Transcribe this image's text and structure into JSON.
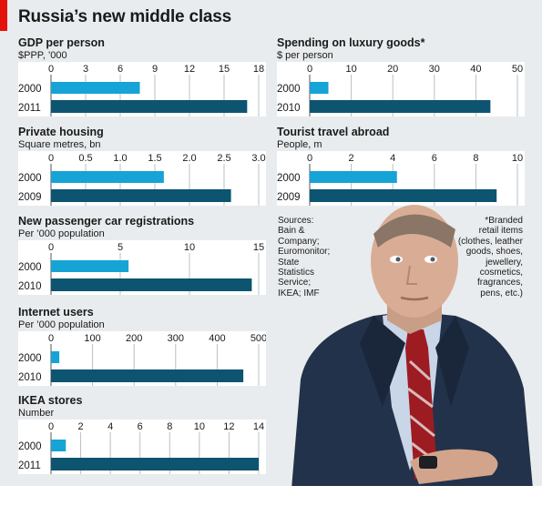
{
  "title": "Russia’s new middle class",
  "sources": [
    "Sources:",
    "Bain &",
    "Company;",
    "Euromonitor;",
    "State",
    "Statistics",
    "Service;",
    "IKEA; IMF"
  ],
  "footnote": [
    "*Branded",
    "retail items",
    "(clothes, leather",
    "goods, shoes,",
    "jewellery,",
    "cosmetics,",
    "fragrances,",
    "pens, etc.)"
  ],
  "colors": {
    "accent_red": "#e3120b",
    "bar_light": "#16a3d6",
    "bar_dark": "#0d5470",
    "background": "#e9ecee"
  },
  "chart_data": [
    {
      "type": "bar",
      "title": "GDP per person",
      "ylabel": "$PPP, ’000",
      "ticks": [
        0,
        3,
        6,
        9,
        12,
        15,
        18
      ],
      "tick_labels": [
        "0",
        "3",
        "6",
        "9",
        "12",
        "15",
        "18"
      ],
      "xlim": [
        0,
        18
      ],
      "categories": [
        "2000",
        "2011"
      ],
      "values": [
        7.7,
        17.0
      ]
    },
    {
      "type": "bar",
      "title": "Spending on luxury goods*",
      "ylabel": "$ per person",
      "ticks": [
        0,
        10,
        20,
        30,
        40,
        50
      ],
      "tick_labels": [
        "0",
        "10",
        "20",
        "30",
        "40",
        "50"
      ],
      "xlim": [
        0,
        50
      ],
      "categories": [
        "2000",
        "2010"
      ],
      "values": [
        4.5,
        43.5
      ]
    },
    {
      "type": "bar",
      "title": "Private housing",
      "ylabel": "Square metres, bn",
      "ticks": [
        0,
        0.5,
        1.0,
        1.5,
        2.0,
        2.5,
        3.0
      ],
      "tick_labels": [
        "0",
        "0.5",
        "1.0",
        "1.5",
        "2.0",
        "2.5",
        "3.0"
      ],
      "xlim": [
        0,
        3
      ],
      "categories": [
        "2000",
        "2009"
      ],
      "values": [
        1.63,
        2.6
      ]
    },
    {
      "type": "bar",
      "title": "Tourist travel abroad",
      "ylabel": "People, m",
      "ticks": [
        0,
        2,
        4,
        6,
        8,
        10
      ],
      "tick_labels": [
        "0",
        "2",
        "4",
        "6",
        "8",
        "10"
      ],
      "xlim": [
        0,
        10
      ],
      "categories": [
        "2000",
        "2009"
      ],
      "values": [
        4.2,
        9.0
      ]
    },
    {
      "type": "bar",
      "title": "New passenger car registrations",
      "ylabel": "Per ’000 population",
      "ticks": [
        0,
        5,
        10,
        15
      ],
      "tick_labels": [
        "0",
        "5",
        "10",
        "15"
      ],
      "xlim": [
        0,
        15
      ],
      "categories": [
        "2000",
        "2010"
      ],
      "values": [
        5.6,
        14.5
      ]
    },
    {
      "type": "bar",
      "title": "Internet users",
      "ylabel": "Per ’000 population",
      "ticks": [
        0,
        100,
        200,
        300,
        400,
        500
      ],
      "tick_labels": [
        "0",
        "100",
        "200",
        "300",
        "400",
        "500"
      ],
      "xlim": [
        0,
        500
      ],
      "categories": [
        "2000",
        "2010"
      ],
      "values": [
        20,
        463
      ]
    },
    {
      "type": "bar",
      "title": "IKEA stores",
      "ylabel": "Number",
      "ticks": [
        0,
        2,
        4,
        6,
        8,
        10,
        12,
        14
      ],
      "tick_labels": [
        "0",
        "2",
        "4",
        "6",
        "8",
        "10",
        "12",
        "14"
      ],
      "xlim": [
        0,
        14
      ],
      "categories": [
        "2000",
        "2011"
      ],
      "values": [
        1,
        14
      ]
    }
  ]
}
